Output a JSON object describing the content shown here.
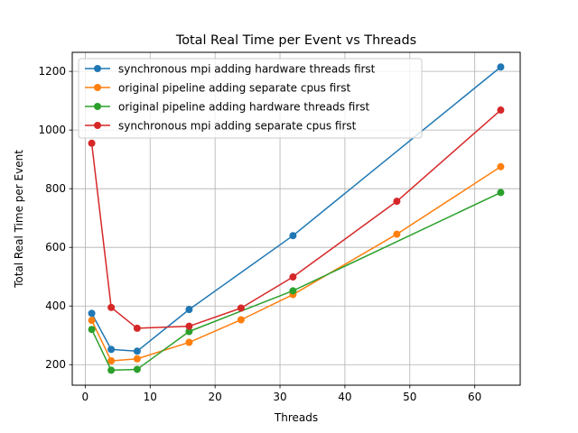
{
  "chart_data": {
    "type": "line",
    "title": "Total Real Time per Event vs Threads",
    "xlabel": "Threads",
    "ylabel": "Total Real Time per Event",
    "xlim": [
      -2,
      67
    ],
    "ylim": [
      130,
      1265
    ],
    "xticks": [
      0,
      10,
      20,
      30,
      40,
      50,
      60
    ],
    "yticks": [
      200,
      400,
      600,
      800,
      1000,
      1200
    ],
    "grid": true,
    "legend_position": "upper-left",
    "series": [
      {
        "name": "synchronous mpi adding hardware threads first",
        "color": "#1f77b4",
        "x": [
          1,
          4,
          8,
          16,
          32,
          64
        ],
        "y": [
          375,
          252,
          246,
          388,
          640,
          1215
        ]
      },
      {
        "name": "original pipeline adding separate cpus first",
        "color": "#ff7f0e",
        "x": [
          1,
          4,
          8,
          16,
          24,
          32,
          48,
          64
        ],
        "y": [
          351,
          213,
          220,
          276,
          353,
          439,
          645,
          875
        ]
      },
      {
        "name": "original pipeline adding hardware threads first",
        "color": "#2ca02c",
        "x": [
          1,
          4,
          8,
          16,
          32,
          64
        ],
        "y": [
          320,
          181,
          184,
          313,
          452,
          787
        ]
      },
      {
        "name": "synchronous mpi adding separate cpus first",
        "color": "#d62728",
        "x": [
          1,
          4,
          8,
          16,
          24,
          32,
          48,
          64
        ],
        "y": [
          955,
          395,
          324,
          331,
          393,
          499,
          757,
          1068
        ]
      }
    ]
  }
}
